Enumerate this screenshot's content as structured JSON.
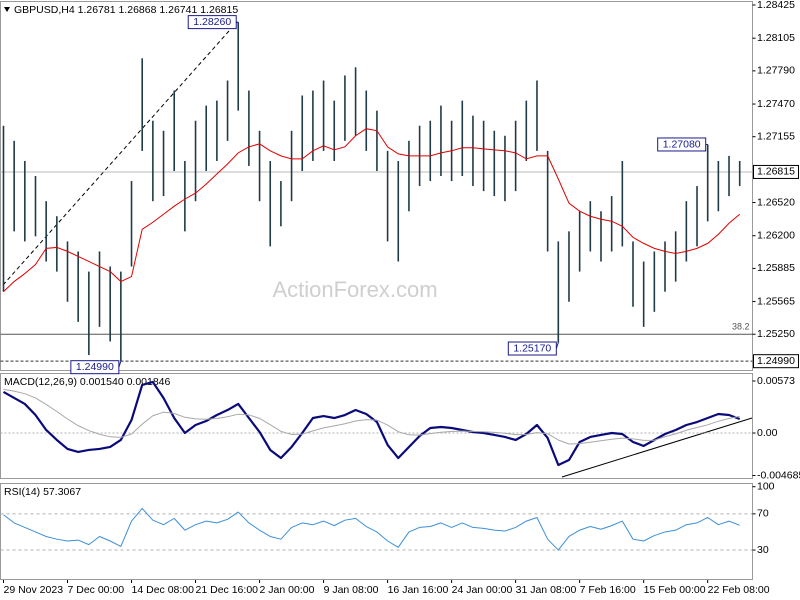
{
  "chart_data": [
    {
      "type": "hlbar",
      "title": "GBPUSD,H4 1.26781 1.26868 1.26741 1.26815",
      "watermark": "ActionForex.com",
      "color": "#1f3b46",
      "high": [
        1.27261,
        1.27115,
        1.26921,
        1.26776,
        1.26533,
        1.26388,
        1.26145,
        1.26048,
        1.25854,
        1.26048,
        1.25903,
        1.25854,
        1.26727,
        1.27911,
        1.27309,
        1.27212,
        1.276,
        1.26921,
        1.27309,
        1.27455,
        1.27503,
        1.27697,
        1.2826,
        1.276,
        1.27212,
        1.26921,
        1.26727,
        1.27212,
        1.27552,
        1.276,
        1.27697,
        1.27503,
        1.27746,
        1.27824,
        1.276,
        1.27406,
        1.27018,
        1.26921,
        1.27115,
        1.27261,
        1.27309,
        1.27455,
        1.27309,
        1.27503,
        1.27358,
        1.27309,
        1.27212,
        1.27164,
        1.27309,
        1.27503,
        1.27697,
        1.27018,
        1.26145,
        1.26242,
        1.26436,
        1.26533,
        1.26436,
        1.26582,
        1.26921,
        1.26145,
        1.25951,
        1.26048,
        1.26145,
        1.26242,
        1.26533,
        1.26679,
        1.2708,
        1.26921,
        1.2697,
        1.26921
      ],
      "low": [
        1.2566,
        1.26242,
        1.26145,
        1.26194,
        1.25951,
        1.25854,
        1.25563,
        1.25369,
        1.25049,
        1.25321,
        1.2518,
        1.2499,
        1.25903,
        1.27018,
        1.26533,
        1.26582,
        1.26824,
        1.26242,
        1.26533,
        1.26824,
        1.26921,
        1.27115,
        1.27406,
        1.26873,
        1.26533,
        1.26097,
        1.26291,
        1.26533,
        1.26824,
        1.26921,
        1.27018,
        1.26921,
        1.27115,
        1.27164,
        1.27018,
        1.26824,
        1.26145,
        1.25951,
        1.26436,
        1.26679,
        1.26727,
        1.26776,
        1.26727,
        1.26776,
        1.26679,
        1.2663,
        1.26582,
        1.26533,
        1.2663,
        1.26921,
        1.27018,
        1.26048,
        1.2517,
        1.25563,
        1.25854,
        1.26048,
        1.25951,
        1.26048,
        1.26097,
        1.25515,
        1.25321,
        1.25466,
        1.2566,
        1.25757,
        1.25951,
        1.26097,
        1.26339,
        1.26436,
        1.26582,
        1.26679
      ],
      "ma": {
        "color": "#e00000",
        "values": [
          1.25661,
          1.25758,
          1.25835,
          1.25922,
          1.26078,
          1.26087,
          1.26049,
          1.26,
          1.25952,
          1.25903,
          1.25854,
          1.25758,
          1.25806,
          1.26262,
          1.2633,
          1.26407,
          1.26485,
          1.26553,
          1.26611,
          1.26698,
          1.26795,
          1.26892,
          1.26999,
          1.27057,
          1.27086,
          1.27019,
          1.2697,
          1.26941,
          1.26941,
          1.27019,
          1.27067,
          1.27028,
          1.27057,
          1.27164,
          1.27232,
          1.27213,
          1.27057,
          1.26989,
          1.2697,
          1.2697,
          1.2697,
          1.26999,
          1.27019,
          1.27048,
          1.27048,
          1.27038,
          1.27028,
          1.27019,
          1.26999,
          1.26941,
          1.2697,
          1.2697,
          1.26747,
          1.26514,
          1.26437,
          1.26388,
          1.26359,
          1.2634,
          1.26291,
          1.26184,
          1.26126,
          1.26078,
          1.26049,
          1.26029,
          1.26049,
          1.26078,
          1.26126,
          1.26213,
          1.2632,
          1.26407
        ]
      },
      "ylim": [
        1.24905,
        1.28454
      ],
      "yticks": [
        1.28425,
        1.28105,
        {
          "value": 1.2779,
          "label": "1.27790"
        },
        {
          "value": 1.2747,
          "label": "1.27470"
        },
        1.27155,
        {
          "value": 1.2652,
          "label": "1.26520"
        },
        {
          "value": 1.262,
          "label": "1.26200"
        },
        1.25885,
        1.25565,
        {
          "value": 1.2525,
          "label": "1.25250"
        }
      ],
      "price_line": 1.26815,
      "low_line": {
        "value": 1.2499,
        "label": "1.24990"
      },
      "fib_level": {
        "value": 1.2525,
        "label": "38.2"
      },
      "annotations": [
        {
          "value": 1.2826,
          "label": "1.28260"
        },
        {
          "value": 1.2499,
          "label": "1.24990"
        },
        {
          "value": 1.2517,
          "label": "1.25170"
        },
        {
          "value": 1.2708,
          "label": "1.27080"
        }
      ]
    },
    {
      "type": "line",
      "title": "MACD(12,26,9) 0.001540 0.001846",
      "series": [
        {
          "color": "#0a0a7a",
          "width": 2.2,
          "values": [
            0.00452,
            0.00386,
            0.0032,
            0.00198,
            0.00033,
            -0.00077,
            -0.00176,
            -0.00209,
            -0.00187,
            -0.00176,
            -0.00154,
            -0.00077,
            0.00143,
            0.00529,
            0.00562,
            0.00386,
            0.00165,
            0,
            0.00088,
            0.00132,
            0.00198,
            0.00253,
            0.0032,
            0.00165,
            0.00011,
            -0.00187,
            -0.00276,
            -0.00154,
            0,
            0.00165,
            0.00187,
            0.00165,
            0.00198,
            0.00253,
            0.00209,
            0.00121,
            -0.00132,
            -0.00276,
            -0.00154,
            -0.00033,
            0.00055,
            0.00066,
            0.00055,
            0.00033,
            0.00011,
            0,
            -0.00022,
            -0.00044,
            -0.00077,
            -0.00011,
            0.00088,
            -0.00055,
            -0.00353,
            -0.00298,
            -0.00099,
            -0.00044,
            -0.00022,
            0,
            -0.00011,
            -0.00099,
            -0.00143,
            -0.00077,
            -0.00011,
            0.00033,
            0.00088,
            0.00121,
            0.00165,
            0.00209,
            0.00198,
            0.00154
          ]
        },
        {
          "color": "#a8a8a8",
          "width": 1,
          "values": [
            0.0048,
            0.00461,
            0.00433,
            0.00386,
            0.00315,
            0.00237,
            0.00154,
            0.00081,
            0.00027,
            -0.00014,
            -0.00042,
            -0.00049,
            -0.00011,
            0.00097,
            0.0019,
            0.00229,
            0.00216,
            0.00173,
            0.00156,
            0.00151,
            0.0016,
            0.00179,
            0.00207,
            0.00199,
            0.00161,
            0.00091,
            0.00018,
            -0.00016,
            -0.00013,
            0.00023,
            0.00056,
            0.00078,
            0.00102,
            0.00132,
            0.00147,
            0.00142,
            0.00087,
            0.00014,
            -0.0002,
            -0.00023,
            -7e-05,
            8e-05,
            0.00017,
            0.0002,
            0.00018,
            0.00014,
            7e-05,
            -3e-05,
            -0.00018,
            -0.00017,
            4e-05,
            -8e-05,
            -0.00077,
            -0.00121,
            -0.00117,
            -0.00102,
            -0.00086,
            -0.00069,
            -0.00057,
            -0.00065,
            -0.00081,
            -0.0008,
            -0.0004,
            -0.0001,
            0.0003,
            0.0006,
            0.0009,
            0.0013,
            0.0016,
            0.001846
          ]
        }
      ],
      "ylim": [
        -0.00496,
        0.0065
      ],
      "yticks": [
        0.00573,
        {
          "value": 0,
          "label": "0.00"
        },
        -0.004685
      ]
    },
    {
      "type": "line",
      "title": "RSI(14) 57.3067",
      "series": [
        {
          "color": "#3d8fd6",
          "width": 1,
          "values": [
            69,
            60,
            55,
            50,
            45,
            42,
            40,
            41,
            36,
            45,
            40,
            34,
            62,
            76,
            63,
            58,
            65,
            52,
            58,
            62,
            60,
            64,
            72,
            60,
            52,
            45,
            42,
            55,
            60,
            58,
            62,
            57,
            63,
            65,
            56,
            50,
            40,
            33,
            50,
            55,
            56,
            60,
            55,
            60,
            55,
            54,
            52,
            51,
            55,
            62,
            66,
            42,
            30,
            45,
            52,
            56,
            53,
            57,
            62,
            42,
            40,
            46,
            50,
            52,
            58,
            60,
            66,
            58,
            62,
            57.3067
          ]
        }
      ],
      "ylim": [
        -2,
        103
      ],
      "yticks": [
        100,
        70,
        30
      ],
      "level_lines": [
        70,
        30
      ],
      "xlim": [
        -0.28,
        70.2
      ],
      "xticks": [
        {
          "value": 0,
          "label": "29 Nov 2023"
        },
        {
          "value": 6,
          "label": "7 Dec 00:00"
        },
        {
          "value": 12,
          "label": "14 Dec 08:00"
        },
        {
          "value": 18,
          "label": "21 Dec 16:00"
        },
        {
          "value": 24,
          "label": "2 Jan 00:00"
        },
        {
          "value": 30,
          "label": "9 Jan 08:00"
        },
        {
          "value": 36,
          "label": "16 Jan 16:00"
        },
        {
          "value": 42,
          "label": "24 Jan 00:00"
        },
        {
          "value": 48,
          "label": "31 Jan 08:00"
        },
        {
          "value": 54,
          "label": "7 Feb 16:00"
        },
        {
          "value": 60,
          "label": "15 Feb 00:00"
        },
        {
          "value": 66,
          "label": "22 Feb 08:00"
        }
      ]
    }
  ]
}
